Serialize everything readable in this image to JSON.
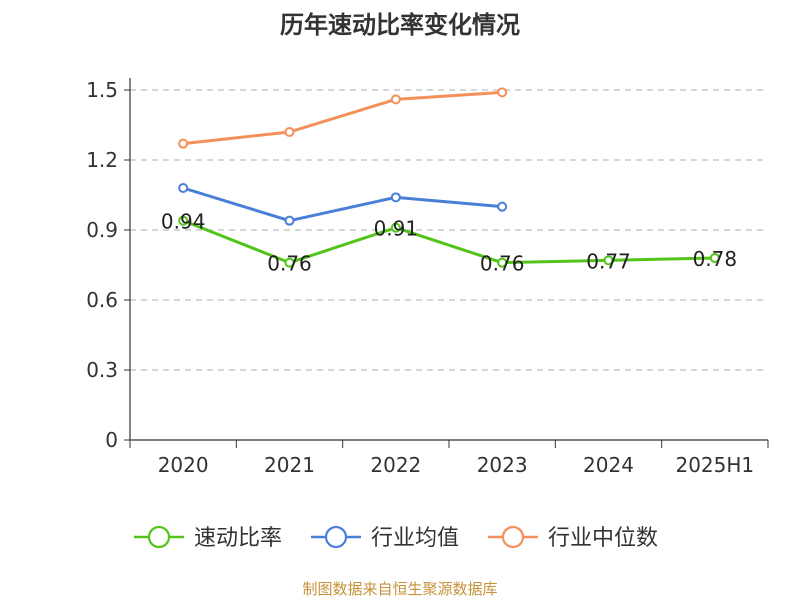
{
  "chart_data": {
    "type": "line",
    "title": "历年速动比率变化情况",
    "categories": [
      "2020",
      "2021",
      "2022",
      "2023",
      "2024",
      "2025H1"
    ],
    "ylim": [
      0,
      1.5
    ],
    "yticks": [
      "0",
      "0.3",
      "0.6",
      "0.9",
      "1.2",
      "1.5"
    ],
    "ytick_values": [
      0,
      0.3,
      0.6,
      0.9,
      1.2,
      1.5
    ],
    "grid": true,
    "legend_position": "bottom",
    "series": [
      {
        "name": "速动比率",
        "color": "#52c41a",
        "values": [
          0.94,
          0.76,
          0.91,
          0.76,
          0.77,
          0.78
        ],
        "labels": [
          "0.94",
          "0.76",
          "0.91",
          "0.76",
          "0.77",
          "0.78"
        ]
      },
      {
        "name": "行业均值",
        "color": "#4a7fd8",
        "values": [
          1.08,
          0.94,
          1.04,
          1.0,
          null,
          null
        ]
      },
      {
        "name": "行业中位数",
        "color": "#f5905a",
        "values": [
          1.27,
          1.32,
          1.46,
          1.49,
          null,
          null
        ]
      }
    ]
  },
  "source_note": "制图数据来自恒生聚源数据库"
}
